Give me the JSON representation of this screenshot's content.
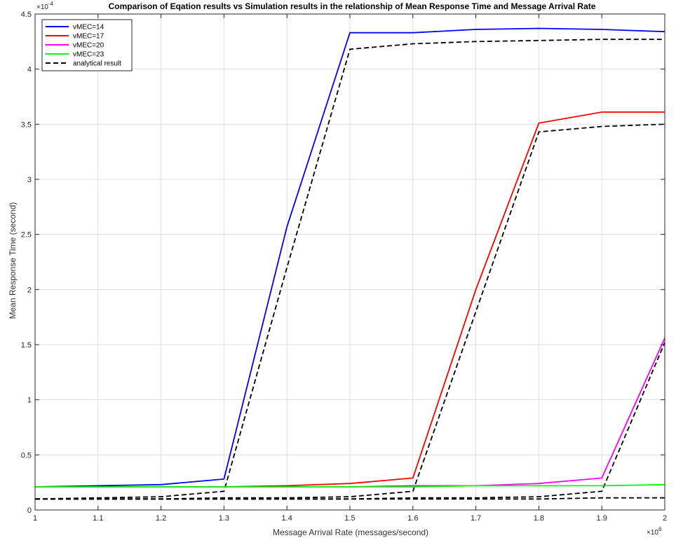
{
  "chart_data": {
    "type": "line",
    "title": "Comparison of Eqation results vs Simulation results in the relationship of Mean Response Time and Message Arrival Rate",
    "xlabel": "Message Arrival Rate (messages/second)",
    "ylabel": "Mean Response Time (second)",
    "x_exponent_label": "×10",
    "x_exponent_power": "6",
    "y_exponent_label": "×10",
    "y_exponent_power": "-4",
    "xlim": [
      1,
      2
    ],
    "ylim": [
      0,
      4.5
    ],
    "x_ticks": [
      1,
      1.1,
      1.2,
      1.3,
      1.4,
      1.5,
      1.6,
      1.7,
      1.8,
      1.9,
      2
    ],
    "x_tick_labels": [
      "1",
      "1.1",
      "1.2",
      "1.3",
      "1.4",
      "1.5",
      "1.6",
      "1.7",
      "1.8",
      "1.9",
      "2"
    ],
    "y_ticks": [
      0,
      0.5,
      1,
      1.5,
      2,
      2.5,
      3,
      3.5,
      4,
      4.5
    ],
    "y_tick_labels": [
      "0",
      "0.5",
      "1",
      "1.5",
      "2",
      "2.5",
      "3",
      "3.5",
      "4",
      "4.5"
    ],
    "grid": true,
    "legend_position": "top-left",
    "x": [
      1.0,
      1.1,
      1.2,
      1.3,
      1.4,
      1.5,
      1.6,
      1.7,
      1.8,
      1.9,
      2.0
    ],
    "series": [
      {
        "name": "vMEC=14",
        "color": "#0000ff",
        "dash": false,
        "values": [
          0.21,
          0.22,
          0.23,
          0.28,
          2.57,
          4.33,
          4.33,
          4.36,
          4.37,
          4.36,
          4.34
        ]
      },
      {
        "name": "vMEC=17",
        "color": "#ff0000",
        "dash": false,
        "values": [
          0.21,
          0.21,
          0.21,
          0.21,
          0.22,
          0.24,
          0.29,
          2.0,
          3.51,
          3.61,
          3.61
        ]
      },
      {
        "name": "vMEC=20",
        "color": "#ff00ff",
        "dash": false,
        "values": [
          0.21,
          0.21,
          0.21,
          0.21,
          0.21,
          0.21,
          0.22,
          0.22,
          0.24,
          0.29,
          1.56
        ]
      },
      {
        "name": "vMEC=23",
        "color": "#00ff00",
        "dash": false,
        "values": [
          0.21,
          0.21,
          0.21,
          0.21,
          0.21,
          0.21,
          0.21,
          0.22,
          0.22,
          0.22,
          0.23
        ]
      },
      {
        "name": "analytical result",
        "color": "#000000",
        "dash": true,
        "values": [
          0.1,
          0.11,
          0.12,
          0.17,
          2.2,
          4.18,
          4.23,
          4.25,
          4.26,
          4.27,
          4.27
        ]
      },
      {
        "name": "",
        "color": "#000000",
        "dash": true,
        "values": [
          0.1,
          0.1,
          0.1,
          0.11,
          0.11,
          0.12,
          0.17,
          1.8,
          3.43,
          3.48,
          3.5
        ]
      },
      {
        "name": "",
        "color": "#000000",
        "dash": true,
        "values": [
          0.1,
          0.1,
          0.1,
          0.1,
          0.1,
          0.1,
          0.11,
          0.11,
          0.12,
          0.17,
          1.52
        ]
      },
      {
        "name": "",
        "color": "#000000",
        "dash": true,
        "values": [
          0.1,
          0.1,
          0.1,
          0.1,
          0.1,
          0.1,
          0.1,
          0.1,
          0.1,
          0.11,
          0.11
        ]
      }
    ]
  }
}
